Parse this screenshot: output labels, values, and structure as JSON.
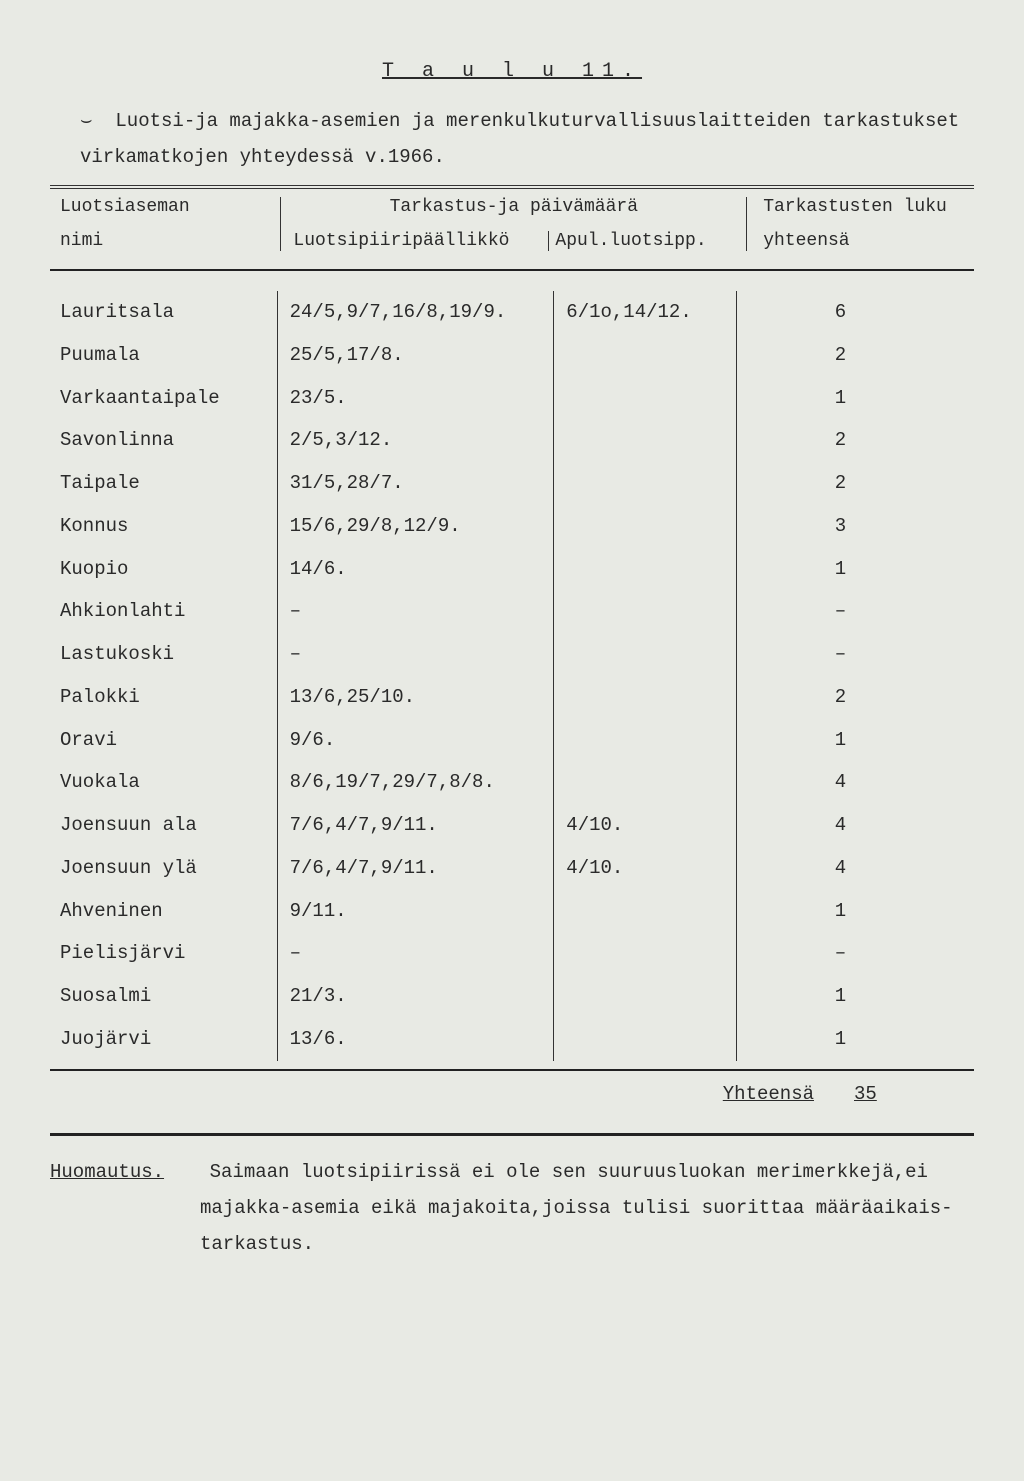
{
  "title_spaced": "T a u l u 11.",
  "intro_marker": "⌣",
  "intro_line": "Luotsi-ja majakka-asemien ja merenkulkuturvallisuuslaitteiden tarkastukset virkamatkojen yhteydessä v.1966.",
  "header": {
    "col1_line1": "Luotsiaseman",
    "col1_line2": "nimi",
    "mid_top": "Tarkastus-ja päivämäärä",
    "mid_sub1": "Luotsipiiripäällikkö",
    "mid_sub2": "Apul.luotsipp.",
    "col4_line1": "Tarkastusten luku",
    "col4_line2": "yhteensä"
  },
  "rows": [
    {
      "name": "Lauritsala",
      "c2": "24/5,9/7,16/8,19/9.",
      "c3": "6/1o,14/12.",
      "c4": "6"
    },
    {
      "name": "Puumala",
      "c2": "25/5,17/8.",
      "c3": "",
      "c4": "2"
    },
    {
      "name": "Varkaantaipale",
      "c2": "23/5.",
      "c3": "",
      "c4": "1"
    },
    {
      "name": "Savonlinna",
      "c2": "2/5,3/12.",
      "c3": "",
      "c4": "2"
    },
    {
      "name": "Taipale",
      "c2": "31/5,28/7.",
      "c3": "",
      "c4": "2"
    },
    {
      "name": "Konnus",
      "c2": "15/6,29/8,12/9.",
      "c3": "",
      "c4": "3"
    },
    {
      "name": "Kuopio",
      "c2": "14/6.",
      "c3": "",
      "c4": "1"
    },
    {
      "name": "Ahkionlahti",
      "c2": "–",
      "c3": "",
      "c4": "–"
    },
    {
      "name": "Lastukoski",
      "c2": "–",
      "c3": "",
      "c4": "–"
    },
    {
      "name": "Palokki",
      "c2": "13/6,25/10.",
      "c3": "",
      "c4": "2"
    },
    {
      "name": "Oravi",
      "c2": " 9/6.",
      "c3": "",
      "c4": "1"
    },
    {
      "name": "Vuokala",
      "c2": "8/6,19/7,29/7,8/8.",
      "c3": "",
      "c4": "4"
    },
    {
      "name": "Joensuun ala",
      "c2": "7/6,4/7,9/11.",
      "c3": "4/10.",
      "c4": "4"
    },
    {
      "name": "Joensuun ylä",
      "c2": "7/6,4/7,9/11.",
      "c3": "4/10.",
      "c4": "4"
    },
    {
      "name": "Ahveninen",
      "c2": "9/11.",
      "c3": "",
      "c4": "1"
    },
    {
      "name": "Pielisjärvi",
      "c2": "–",
      "c3": "",
      "c4": "–"
    },
    {
      "name": "Suosalmi",
      "c2": "21/3.",
      "c3": "",
      "c4": "1"
    },
    {
      "name": "Juojärvi",
      "c2": "13/6.",
      "c3": "",
      "c4": "1"
    }
  ],
  "total": {
    "label": "Yhteensä",
    "value": "35"
  },
  "note": {
    "label": "Huomautus.",
    "text_first": "Saimaan luotsipiirissä ei ole sen suuruusluokan merimerkkejä,ei",
    "text_rest": "majakka-asemia eikä majakoita,joissa tulisi suorittaa määräaikais-tarkastus."
  }
}
